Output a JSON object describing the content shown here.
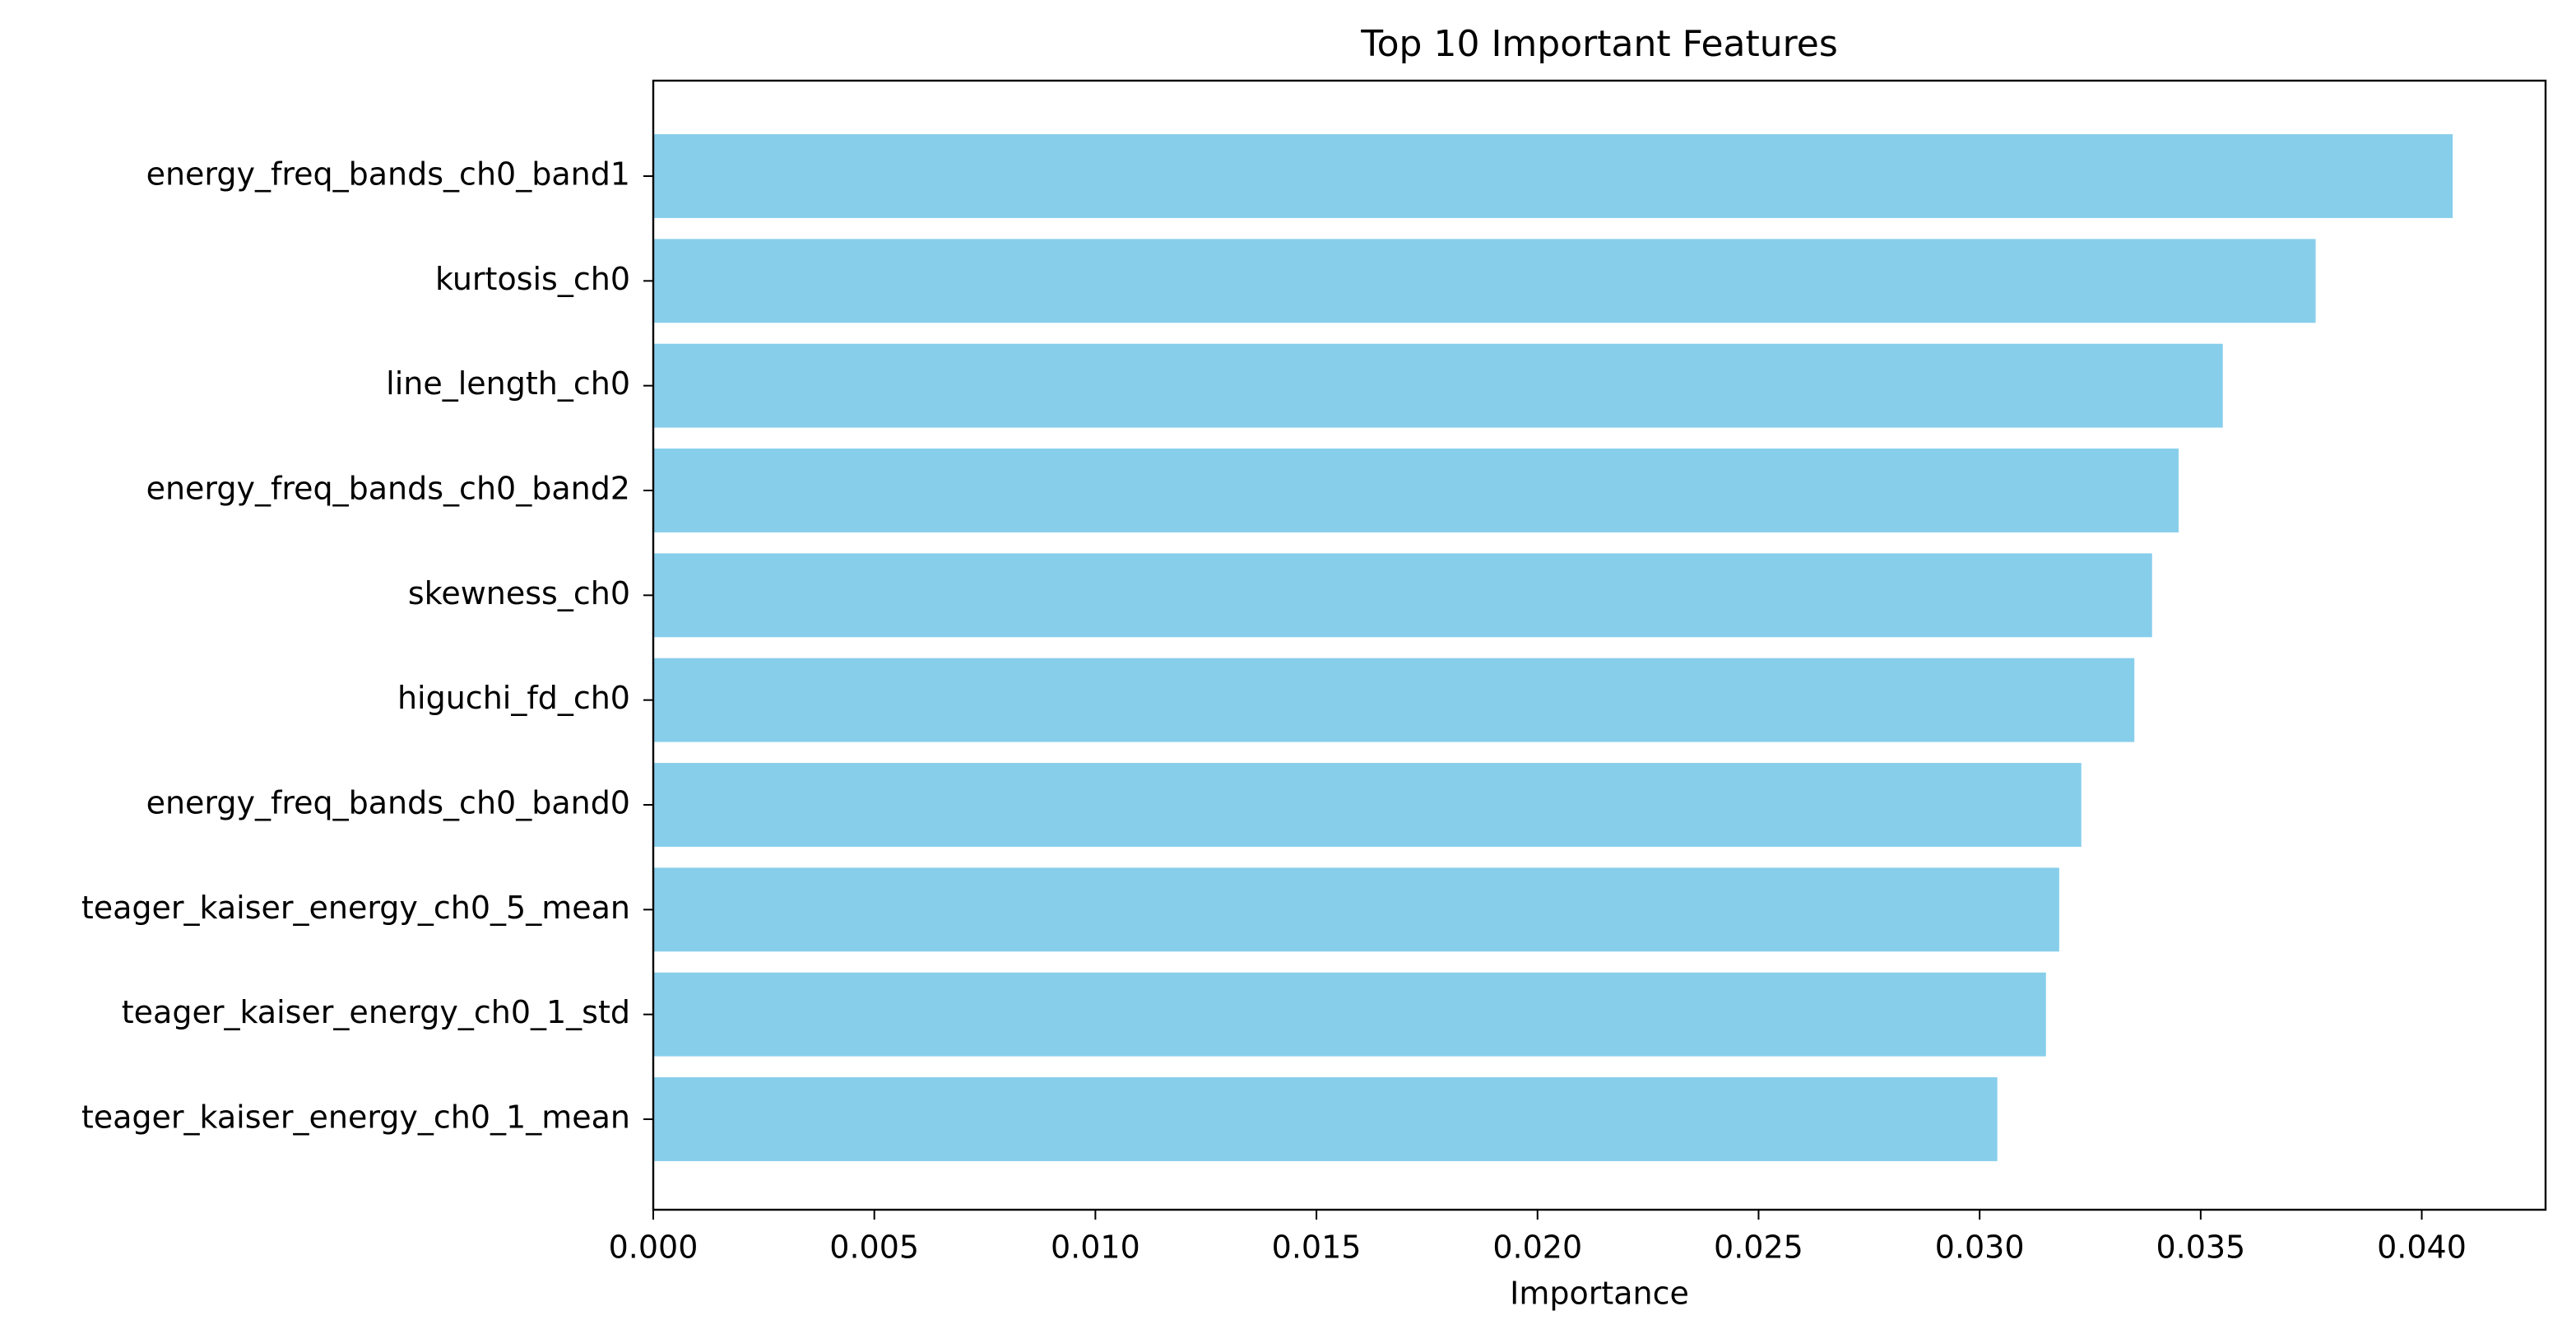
{
  "chart_data": {
    "type": "barh",
    "title": "Top 10 Important Features",
    "x_label": "Importance",
    "categories": [
      "energy_freq_bands_ch0_band1",
      "kurtosis_ch0",
      "line_length_ch0",
      "energy_freq_bands_ch0_band2",
      "skewness_ch0",
      "higuchi_fd_ch0",
      "energy_freq_bands_ch0_band0",
      "teager_kaiser_energy_ch0_5_mean",
      "teager_kaiser_energy_ch0_1_std",
      "teager_kaiser_energy_ch0_1_mean"
    ],
    "values": [
      0.0407,
      0.0376,
      0.0355,
      0.0345,
      0.0339,
      0.0335,
      0.0323,
      0.0318,
      0.0315,
      0.0304
    ],
    "color": "#87ceeb",
    "xlim": [
      0,
      0.0428
    ],
    "xticks": [
      {
        "value": 0,
        "label": "0.000"
      },
      0.005,
      {
        "value": 0.01,
        "label": "0.010"
      },
      0.015,
      {
        "value": 0.02,
        "label": "0.020"
      },
      0.025,
      {
        "value": 0.03,
        "label": "0.030"
      },
      0.035,
      {
        "value": 0.04,
        "label": "0.040"
      }
    ]
  }
}
